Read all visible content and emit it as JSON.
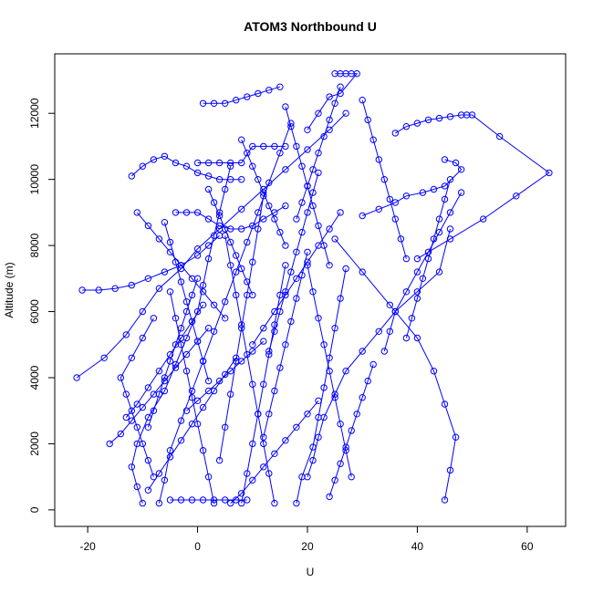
{
  "chart_data": {
    "type": "scatter",
    "title": "ATOM3 Northbound U",
    "xlabel": "U",
    "ylabel": "Altitude (m)",
    "xlim": [
      -26,
      67
    ],
    "ylim": [
      -500,
      13800
    ],
    "xticks": [
      -20,
      0,
      20,
      40,
      60
    ],
    "yticks": [
      0,
      2000,
      4000,
      6000,
      8000,
      10000,
      12000
    ],
    "grid": false,
    "legend": "none",
    "colors": {
      "series": "#0000ff",
      "axes": "#000000",
      "background": "#ffffff"
    },
    "marker": "open-circle",
    "connect_points": true,
    "series": [
      {
        "x": [
          -7,
          -6,
          -5,
          -3,
          -1,
          1,
          3,
          5,
          7,
          9,
          11,
          13,
          15,
          17
        ],
        "y": [
          200,
          900,
          1800,
          2700,
          3600,
          4500,
          5400,
          6300,
          7200,
          8100,
          9000,
          9900,
          10800,
          11700
        ]
      },
      {
        "x": [
          -10,
          -11,
          -12,
          -11,
          -9,
          -6,
          -4,
          -2,
          0,
          1,
          2,
          3,
          4,
          5,
          6
        ],
        "y": [
          200,
          700,
          1300,
          2000,
          2800,
          3600,
          4400,
          5200,
          6000,
          6800,
          7600,
          8300,
          9000,
          9700,
          10400
        ]
      },
      {
        "x": [
          18,
          19,
          21,
          22,
          23,
          24,
          25,
          26,
          27
        ],
        "y": [
          200,
          1000,
          1900,
          2800,
          3700,
          4600,
          5500,
          6400,
          7300
        ]
      },
      {
        "x": [
          -22,
          -17,
          -13,
          -10,
          -7,
          -3,
          0,
          4,
          8,
          12,
          16,
          20,
          24,
          27
        ],
        "y": [
          4000,
          4600,
          5300,
          6000,
          6700,
          7300,
          7900,
          8500,
          9100,
          9700,
          10300,
          10900,
          11500,
          12000
        ]
      },
      {
        "x": [
          -21,
          -18,
          -15,
          -12,
          -9,
          -6,
          -3,
          0,
          2,
          4
        ],
        "y": [
          6650,
          6650,
          6700,
          6800,
          7000,
          7200,
          7400,
          7700,
          8000,
          8300
        ]
      },
      {
        "x": [
          36,
          38,
          40,
          42,
          44,
          46,
          48,
          49,
          50,
          55,
          64,
          58,
          52,
          46,
          40
        ],
        "y": [
          11400,
          11600,
          11700,
          11800,
          11850,
          11900,
          11950,
          11950,
          11950,
          11300,
          10200,
          9500,
          8800,
          8200,
          7600
        ]
      },
      {
        "x": [
          25,
          26,
          27,
          28,
          29,
          26,
          24,
          22,
          20
        ],
        "y": [
          13200,
          13200,
          13200,
          13200,
          13200,
          12600,
          12500,
          12000,
          11500
        ]
      },
      {
        "x": [
          45,
          46,
          47,
          45,
          43,
          40,
          35,
          30,
          25
        ],
        "y": [
          300,
          1200,
          2200,
          3200,
          4200,
          5200,
          6200,
          7200,
          8200
        ]
      },
      {
        "x": [
          8,
          9,
          10,
          11,
          12,
          13,
          14,
          15,
          16
        ],
        "y": [
          200,
          1100,
          2000,
          2900,
          3800,
          4700,
          5600,
          6500,
          7400
        ]
      },
      {
        "x": [
          0,
          2,
          4,
          6,
          8,
          10,
          12,
          14,
          16
        ],
        "y": [
          10500,
          10500,
          10500,
          10500,
          10500,
          11000,
          11000,
          11000,
          11000
        ]
      },
      {
        "x": [
          -4,
          -2,
          0,
          2,
          4,
          6,
          8,
          10,
          12,
          14,
          16
        ],
        "y": [
          9000,
          9000,
          9000,
          8800,
          8600,
          8500,
          8500,
          8600,
          8800,
          9000,
          9200
        ]
      },
      {
        "x": [
          45,
          47,
          48,
          45,
          43,
          41,
          38,
          36,
          33,
          30
        ],
        "y": [
          10600,
          10500,
          10300,
          9800,
          9700,
          9600,
          9500,
          9300,
          9100,
          8900
        ]
      },
      {
        "x": [
          1,
          3,
          5,
          7,
          9,
          11,
          13,
          15
        ],
        "y": [
          12300,
          12300,
          12300,
          12400,
          12500,
          12600,
          12700,
          12800
        ]
      },
      {
        "x": [
          -12,
          -10,
          -8,
          -6,
          -4,
          -2,
          0,
          2,
          4,
          6,
          8
        ],
        "y": [
          10100,
          10400,
          10600,
          10700,
          10500,
          10400,
          10200,
          10100,
          10000,
          10000,
          10000
        ]
      },
      {
        "x": [
          20,
          21,
          22,
          23,
          25,
          27,
          30,
          33,
          36,
          40,
          44,
          46
        ],
        "y": [
          1000,
          1500,
          2200,
          2800,
          3500,
          4200,
          4800,
          5400,
          6000,
          6600,
          7200,
          8500
        ]
      },
      {
        "x": [
          -8,
          -9,
          -10,
          -11,
          -12,
          -13,
          -14,
          -12,
          -10,
          -8
        ],
        "y": [
          1000,
          1500,
          2000,
          2500,
          3000,
          3500,
          4000,
          4600,
          5200,
          5800
        ]
      },
      {
        "x": [
          3,
          2,
          1,
          0,
          -1,
          -2,
          -3,
          -4,
          -5
        ],
        "y": [
          200,
          1000,
          1800,
          2600,
          3400,
          4200,
          5000,
          5800,
          6600
        ]
      },
      {
        "x": [
          14,
          13,
          12,
          11,
          10,
          9,
          8,
          7,
          6,
          5
        ],
        "y": [
          200,
          1100,
          2000,
          2900,
          3800,
          4700,
          5600,
          6500,
          7400,
          8300
        ]
      },
      {
        "x": [
          30,
          31,
          32,
          33,
          34,
          35,
          36,
          37,
          38
        ],
        "y": [
          12400,
          11800,
          11200,
          10600,
          10000,
          9400,
          8800,
          8200,
          7600
        ]
      },
      {
        "x": [
          -5,
          -3,
          -1,
          1,
          3,
          5,
          7,
          9
        ],
        "y": [
          300,
          300,
          300,
          300,
          300,
          300,
          300,
          300
        ]
      },
      {
        "x": [
          6,
          8,
          10,
          12,
          14,
          16,
          18,
          20,
          22
        ],
        "y": [
          200,
          500,
          900,
          1300,
          1700,
          2100,
          2500,
          2900,
          3300
        ]
      },
      {
        "x": [
          -16,
          -14,
          -12,
          -10,
          -8,
          -6,
          -4,
          -2,
          0,
          2
        ],
        "y": [
          2000,
          2300,
          2700,
          3100,
          3500,
          3900,
          4300,
          4700,
          5100,
          5500
        ]
      },
      {
        "x": [
          10,
          12,
          14,
          16,
          18,
          20,
          22,
          24,
          26
        ],
        "y": [
          5000,
          5500,
          6000,
          6500,
          7000,
          7500,
          8000,
          8500,
          9000
        ]
      },
      {
        "x": [
          0,
          -1,
          -2,
          -3,
          -4,
          -5,
          -6,
          -7,
          -8,
          -9
        ],
        "y": [
          7000,
          6500,
          6000,
          5500,
          5000,
          4500,
          4000,
          3500,
          3000,
          2500
        ]
      },
      {
        "x": [
          22,
          21,
          20,
          19,
          18,
          17,
          16,
          15,
          14,
          13
        ],
        "y": [
          10200,
          9600,
          9000,
          8400,
          7800,
          7200,
          6600,
          6000,
          5400,
          4800
        ]
      },
      {
        "x": [
          4,
          5,
          6,
          7,
          8,
          9,
          10,
          11,
          12
        ],
        "y": [
          1500,
          2500,
          3500,
          4500,
          5500,
          6500,
          7500,
          8500,
          9500
        ]
      },
      {
        "x": [
          -11,
          -9,
          -7,
          -5,
          -3,
          -1,
          1,
          3,
          5
        ],
        "y": [
          9000,
          8600,
          8200,
          7800,
          7400,
          7000,
          6600,
          6200,
          5800
        ]
      },
      {
        "x": [
          28,
          27,
          26,
          25,
          24,
          23,
          22,
          21,
          20
        ],
        "y": [
          1000,
          1800,
          2600,
          3400,
          4200,
          5000,
          5800,
          6600,
          7400
        ]
      },
      {
        "x": [
          34,
          35,
          36,
          38,
          40,
          42,
          44,
          46,
          48
        ],
        "y": [
          4800,
          5400,
          6000,
          6600,
          7200,
          7800,
          8400,
          9000,
          9600
        ]
      },
      {
        "x": [
          -13,
          -11,
          -9,
          -7,
          -5,
          -3,
          -1,
          1
        ],
        "y": [
          2800,
          3200,
          3700,
          4200,
          4700,
          5200,
          5700,
          6200
        ]
      },
      {
        "x": [
          8,
          9,
          10,
          11,
          12,
          13,
          14,
          15,
          16
        ],
        "y": [
          11200,
          10800,
          10400,
          10000,
          9600,
          9200,
          8800,
          8400,
          8000
        ]
      },
      {
        "x": [
          16,
          17,
          18,
          19,
          20,
          21,
          22,
          23,
          24
        ],
        "y": [
          12200,
          11600,
          11000,
          10400,
          9800,
          9200,
          8600,
          8000,
          7400
        ]
      },
      {
        "x": [
          -2,
          0,
          2,
          4,
          6,
          8,
          10,
          12
        ],
        "y": [
          3000,
          3300,
          3600,
          3900,
          4200,
          4500,
          4800,
          5100
        ]
      },
      {
        "x": [
          -6,
          -5,
          -4,
          -3,
          -2,
          -1,
          0,
          1,
          2
        ],
        "y": [
          8700,
          8100,
          7500,
          6900,
          6300,
          5700,
          5100,
          4500,
          3900
        ]
      },
      {
        "x": [
          24,
          25,
          26,
          27,
          28,
          29,
          30,
          31,
          32
        ],
        "y": [
          400,
          900,
          1400,
          1900,
          2400,
          2900,
          3400,
          3900,
          4400
        ]
      },
      {
        "x": [
          12,
          13,
          14,
          15,
          16,
          17,
          18,
          19,
          20
        ],
        "y": [
          2200,
          2900,
          3600,
          4300,
          5000,
          5700,
          6400,
          7100,
          7800
        ]
      },
      {
        "x": [
          38,
          39,
          40,
          41,
          42,
          43,
          44,
          45,
          46
        ],
        "y": [
          5200,
          5800,
          6400,
          7000,
          7600,
          8200,
          8800,
          9400,
          10000
        ]
      },
      {
        "x": [
          -9,
          -7,
          -5,
          -3,
          -1,
          1,
          3,
          5,
          7
        ],
        "y": [
          600,
          1100,
          1600,
          2100,
          2600,
          3100,
          3600,
          4100,
          4600
        ]
      },
      {
        "x": [
          2,
          3,
          4,
          5,
          6,
          7,
          8,
          9,
          10
        ],
        "y": [
          9700,
          9300,
          8900,
          8500,
          8100,
          7700,
          7300,
          6900,
          6500
        ]
      },
      {
        "x": [
          18,
          19,
          20,
          21,
          22,
          23,
          24,
          25,
          26
        ],
        "y": [
          8800,
          9300,
          9800,
          10300,
          10800,
          11300,
          11800,
          12300,
          12800
        ]
      }
    ]
  }
}
